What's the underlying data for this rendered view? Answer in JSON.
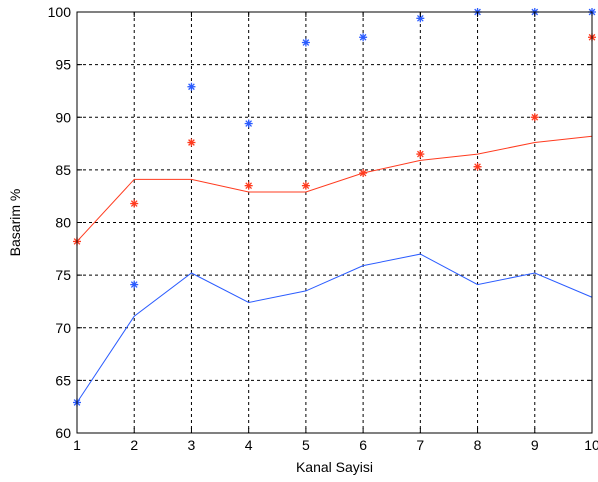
{
  "chart_data": {
    "type": "line",
    "title": "",
    "xlabel": "Kanal Sayisi",
    "ylabel": "Basarim %",
    "xlim": [
      1,
      10
    ],
    "ylim": [
      60,
      100
    ],
    "xticks": [
      "1",
      "2",
      "3",
      "4",
      "5",
      "6",
      "7",
      "8",
      "9",
      "10"
    ],
    "yticks": [
      "60",
      "65",
      "70",
      "75",
      "80",
      "85",
      "90",
      "95",
      "100"
    ],
    "grid": true,
    "colors": {
      "blue": "#2b5cff",
      "red": "#ff3b1f",
      "grid": "#000000",
      "axis": "#000000"
    },
    "series": [
      {
        "style": "line",
        "color": "#2b5cff",
        "x": [
          1,
          2,
          3,
          4,
          5,
          6,
          7,
          8,
          9,
          10
        ],
        "y": [
          62.9,
          71.1,
          75.2,
          72.4,
          73.5,
          75.9,
          77.0,
          74.1,
          75.2,
          72.9
        ]
      },
      {
        "style": "markers",
        "marker": "star",
        "color": "#2b5cff",
        "x": [
          1,
          2,
          3,
          4,
          5,
          6,
          7,
          8,
          9,
          10
        ],
        "y": [
          62.9,
          74.1,
          92.9,
          89.4,
          97.1,
          97.6,
          99.4,
          100.0,
          100.0,
          100.0
        ]
      },
      {
        "style": "line",
        "color": "#ff3b1f",
        "x": [
          1,
          2,
          3,
          4,
          5,
          6,
          7,
          8,
          9,
          10
        ],
        "y": [
          78.2,
          84.1,
          84.1,
          82.9,
          82.9,
          84.7,
          85.9,
          86.5,
          87.6,
          88.2
        ]
      },
      {
        "style": "markers",
        "marker": "star",
        "color": "#ff3b1f",
        "x": [
          1,
          2,
          3,
          4,
          5,
          6,
          7,
          8,
          9,
          10
        ],
        "y": [
          78.2,
          81.8,
          87.6,
          83.5,
          83.5,
          84.7,
          86.5,
          85.3,
          90.0,
          97.6
        ]
      }
    ]
  }
}
